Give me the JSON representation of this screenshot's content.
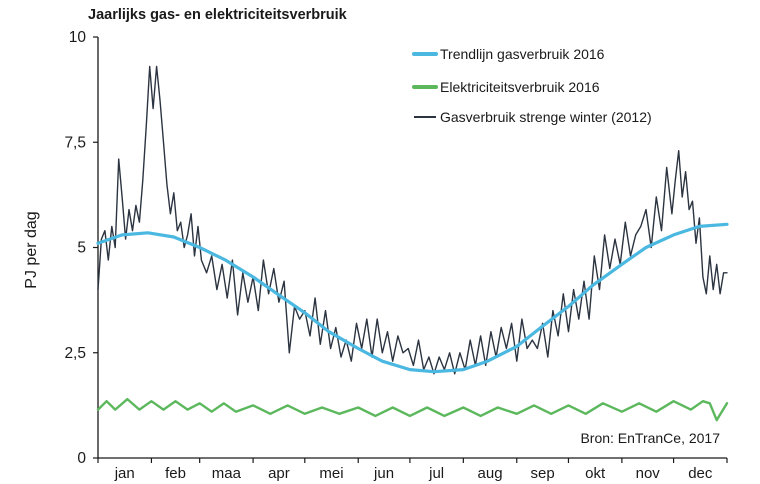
{
  "chart_data": {
    "type": "line",
    "title": "Jaarlijks gas- en elektriciteitsverbruik",
    "ylabel": "PJ per dag",
    "xlabel": "",
    "ylim": [
      0,
      10
    ],
    "yticks": [
      0,
      2.5,
      5,
      7.5,
      10
    ],
    "ytick_labels": [
      "0",
      "2,5",
      "5",
      "7,5",
      "10"
    ],
    "x_unit": "day of year",
    "xlim": [
      1,
      366
    ],
    "months": [
      "jan",
      "feb",
      "maa",
      "apr",
      "mei",
      "jun",
      "jul",
      "aug",
      "sep",
      "okt",
      "nov",
      "dec"
    ],
    "month_starts": [
      1,
      32,
      60,
      91,
      121,
      152,
      182,
      213,
      244,
      274,
      305,
      335
    ],
    "grid": false,
    "legend_position": "top-right",
    "source": "Bron: EnTranCe, 2017",
    "colors": {
      "trend": "#4ab8e0",
      "electricity": "#5cb85c",
      "winter": "#2b3440"
    },
    "series": [
      {
        "key": "trend",
        "name": "Trendlijn gasverbruik 2016",
        "x": [
          1,
          15,
          30,
          45,
          60,
          75,
          91,
          105,
          121,
          135,
          152,
          166,
          182,
          196,
          213,
          227,
          244,
          258,
          274,
          288,
          305,
          319,
          335,
          350,
          366
        ],
        "y": [
          5.1,
          5.3,
          5.35,
          5.25,
          5.0,
          4.7,
          4.3,
          3.9,
          3.45,
          3.0,
          2.6,
          2.3,
          2.1,
          2.05,
          2.1,
          2.3,
          2.65,
          3.1,
          3.6,
          4.1,
          4.6,
          5.0,
          5.3,
          5.5,
          5.55
        ]
      },
      {
        "key": "electricity",
        "name": "Elektriciteitsverbruik 2016",
        "x": [
          1,
          6,
          11,
          18,
          25,
          32,
          39,
          46,
          53,
          60,
          67,
          74,
          81,
          91,
          101,
          111,
          121,
          131,
          141,
          152,
          162,
          172,
          182,
          192,
          202,
          213,
          223,
          233,
          244,
          254,
          264,
          274,
          284,
          294,
          305,
          315,
          325,
          335,
          345,
          352,
          356,
          360,
          366
        ],
        "y": [
          1.15,
          1.35,
          1.15,
          1.4,
          1.15,
          1.35,
          1.15,
          1.35,
          1.15,
          1.3,
          1.1,
          1.3,
          1.1,
          1.25,
          1.05,
          1.25,
          1.05,
          1.2,
          1.05,
          1.2,
          1.0,
          1.2,
          1.0,
          1.2,
          1.0,
          1.2,
          1.0,
          1.2,
          1.05,
          1.25,
          1.05,
          1.25,
          1.05,
          1.3,
          1.1,
          1.3,
          1.1,
          1.35,
          1.15,
          1.35,
          1.3,
          0.9,
          1.3
        ]
      },
      {
        "key": "winter",
        "name": "Gasverbruik strenge winter (2012)",
        "x": [
          1,
          3,
          5,
          7,
          9,
          11,
          13,
          15,
          17,
          19,
          21,
          23,
          25,
          27,
          29,
          31,
          33,
          35,
          37,
          39,
          41,
          43,
          45,
          47,
          49,
          51,
          53,
          55,
          57,
          59,
          61,
          64,
          67,
          70,
          73,
          76,
          79,
          82,
          85,
          88,
          91,
          94,
          97,
          100,
          103,
          106,
          109,
          112,
          115,
          118,
          121,
          124,
          127,
          130,
          133,
          136,
          139,
          142,
          145,
          148,
          151,
          154,
          157,
          160,
          163,
          166,
          169,
          172,
          175,
          178,
          181,
          184,
          187,
          190,
          193,
          196,
          199,
          202,
          205,
          208,
          211,
          214,
          217,
          220,
          223,
          226,
          229,
          232,
          235,
          238,
          241,
          244,
          247,
          250,
          253,
          256,
          259,
          262,
          265,
          268,
          271,
          274,
          277,
          280,
          283,
          286,
          289,
          292,
          295,
          298,
          301,
          304,
          307,
          310,
          313,
          316,
          319,
          322,
          325,
          328,
          331,
          334,
          336,
          338,
          340,
          342,
          344,
          346,
          348,
          350,
          352,
          354,
          356,
          358,
          360,
          362,
          364,
          366
        ],
        "y": [
          4.0,
          5.2,
          5.4,
          4.7,
          5.5,
          5.0,
          7.1,
          6.2,
          5.2,
          5.9,
          5.4,
          6.0,
          5.6,
          6.6,
          7.9,
          9.3,
          8.3,
          9.3,
          8.5,
          7.5,
          6.5,
          5.8,
          6.3,
          5.4,
          5.6,
          5.0,
          5.3,
          5.8,
          4.8,
          5.5,
          4.7,
          4.4,
          4.8,
          4.0,
          4.6,
          3.8,
          4.7,
          3.4,
          4.4,
          3.7,
          4.3,
          3.5,
          4.7,
          3.9,
          4.5,
          3.7,
          4.2,
          2.5,
          3.6,
          3.3,
          3.5,
          2.9,
          3.8,
          2.7,
          3.5,
          2.6,
          3.1,
          2.4,
          2.8,
          2.3,
          3.2,
          2.6,
          3.3,
          2.4,
          3.3,
          2.5,
          3.0,
          2.3,
          2.9,
          2.5,
          2.6,
          2.2,
          2.8,
          2.1,
          2.4,
          2.0,
          2.4,
          2.1,
          2.5,
          2.0,
          2.5,
          2.1,
          2.8,
          2.2,
          2.9,
          2.2,
          3.0,
          2.4,
          3.1,
          2.6,
          3.2,
          2.3,
          3.3,
          2.6,
          2.8,
          2.6,
          3.2,
          2.4,
          3.5,
          2.9,
          3.9,
          3.0,
          4.0,
          3.3,
          4.2,
          3.3,
          4.8,
          4.0,
          5.3,
          4.5,
          5.2,
          4.6,
          5.6,
          4.8,
          5.3,
          5.5,
          5.9,
          5.0,
          6.2,
          5.4,
          6.9,
          5.8,
          6.6,
          7.3,
          6.2,
          6.8,
          5.9,
          6.1,
          5.1,
          5.7,
          4.3,
          3.9,
          4.8,
          4.0,
          4.6,
          3.9,
          4.4,
          4.4
        ]
      }
    ]
  }
}
